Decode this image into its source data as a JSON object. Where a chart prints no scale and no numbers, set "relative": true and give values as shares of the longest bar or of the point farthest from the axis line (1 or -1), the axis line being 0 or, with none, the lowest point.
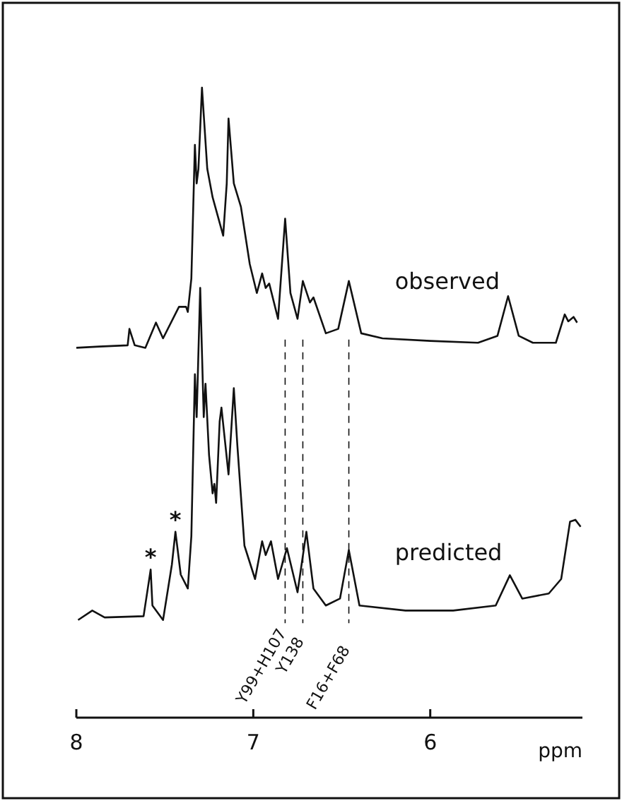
{
  "chart_data": {
    "type": "line",
    "relative": true,
    "xlabel": "ppm",
    "xlim": [
      8.0,
      5.14
    ],
    "xticks": [
      8,
      7,
      6
    ],
    "legend": false,
    "marker": "none",
    "line_style": "solid",
    "series": [
      {
        "name": "observed",
        "color": "#111111",
        "x": [
          8.0,
          7.87,
          7.71,
          7.7,
          7.67,
          7.61,
          7.55,
          7.51,
          7.42,
          7.38,
          7.37,
          7.35,
          7.33,
          7.32,
          7.31,
          7.29,
          7.26,
          7.23,
          7.17,
          7.15,
          7.14,
          7.11,
          7.07,
          7.02,
          6.98,
          6.95,
          6.93,
          6.91,
          6.86,
          6.82,
          6.79,
          6.75,
          6.72,
          6.68,
          6.66,
          6.59,
          6.52,
          6.46,
          6.39,
          6.27,
          6.0,
          5.73,
          5.62,
          5.56,
          5.5,
          5.42,
          5.29,
          5.24,
          5.22,
          5.19,
          5.17
        ],
        "values": [
          0.587,
          0.589,
          0.591,
          0.617,
          0.591,
          0.587,
          0.627,
          0.602,
          0.652,
          0.652,
          0.644,
          0.697,
          0.909,
          0.848,
          0.871,
          1.0,
          0.871,
          0.826,
          0.765,
          0.848,
          0.951,
          0.848,
          0.811,
          0.72,
          0.674,
          0.705,
          0.682,
          0.689,
          0.633,
          0.792,
          0.674,
          0.633,
          0.693,
          0.659,
          0.667,
          0.61,
          0.617,
          0.693,
          0.61,
          0.602,
          0.598,
          0.595,
          0.606,
          0.669,
          0.606,
          0.595,
          0.595,
          0.64,
          0.629,
          0.636,
          0.627
        ]
      },
      {
        "name": "predicted",
        "color": "#111111",
        "x": [
          7.99,
          7.91,
          7.84,
          7.62,
          7.58,
          7.57,
          7.51,
          7.46,
          7.44,
          7.41,
          7.37,
          7.35,
          7.33,
          7.32,
          7.3,
          7.28,
          7.27,
          7.25,
          7.23,
          7.22,
          7.21,
          7.19,
          7.18,
          7.16,
          7.14,
          7.11,
          7.09,
          7.05,
          6.99,
          6.95,
          6.93,
          6.9,
          6.86,
          6.81,
          6.75,
          6.7,
          6.66,
          6.59,
          6.51,
          6.46,
          6.4,
          6.14,
          5.87,
          5.63,
          5.55,
          5.48,
          5.33,
          5.26,
          5.21,
          5.18,
          5.15
        ],
        "values": [
          0.155,
          0.17,
          0.159,
          0.161,
          0.235,
          0.178,
          0.155,
          0.243,
          0.295,
          0.227,
          0.205,
          0.288,
          0.545,
          0.477,
          0.682,
          0.477,
          0.53,
          0.417,
          0.356,
          0.371,
          0.341,
          0.47,
          0.492,
          0.439,
          0.386,
          0.523,
          0.432,
          0.273,
          0.22,
          0.28,
          0.258,
          0.28,
          0.22,
          0.269,
          0.199,
          0.295,
          0.205,
          0.178,
          0.189,
          0.266,
          0.178,
          0.17,
          0.17,
          0.178,
          0.226,
          0.189,
          0.197,
          0.22,
          0.311,
          0.314,
          0.303
        ]
      }
    ],
    "ref_lines": [
      {
        "axis": "x",
        "value": 6.82,
        "label": "Y99+H107",
        "line_style": "dashed"
      },
      {
        "axis": "x",
        "value": 6.72,
        "label": "Y138",
        "line_style": "dashed"
      },
      {
        "axis": "x",
        "value": 6.46,
        "label": "F16+F68",
        "line_style": "dashed"
      }
    ],
    "annotations": [
      {
        "text": "*",
        "x": 7.58,
        "y": 0.235
      },
      {
        "text": "*",
        "x": 7.44,
        "y": 0.295
      }
    ]
  }
}
